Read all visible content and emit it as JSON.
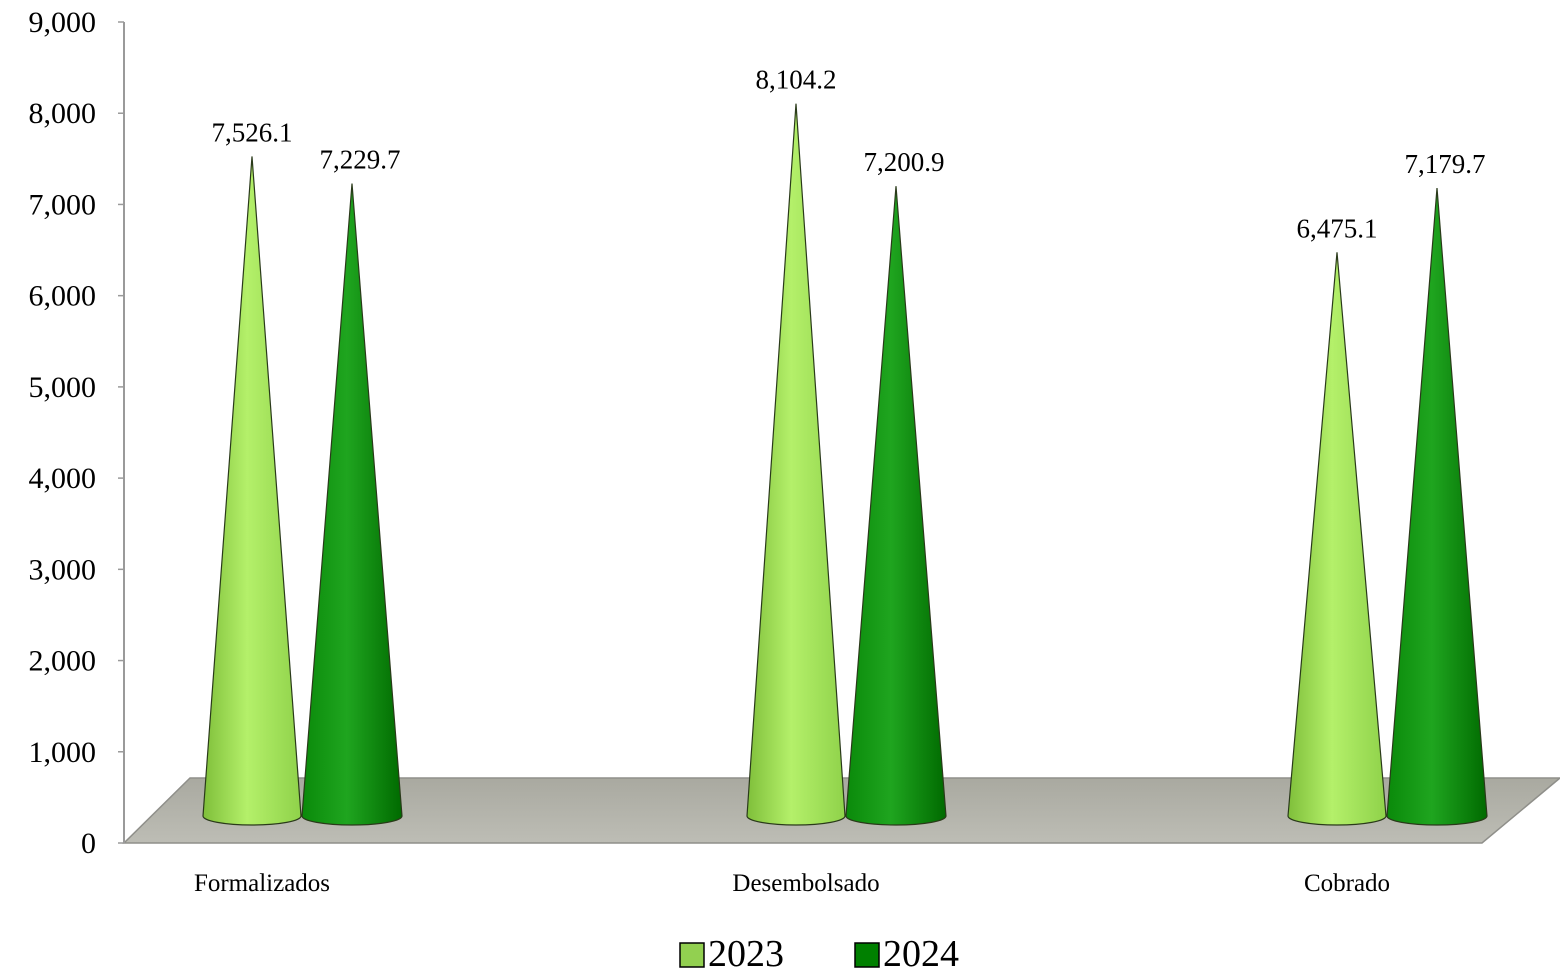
{
  "chart_data": {
    "type": "bar",
    "style": "3d-cone",
    "title": "",
    "xlabel": "",
    "ylabel": "",
    "categories": [
      "Formalizados",
      "Desembolsado",
      "Cobrado"
    ],
    "series": [
      {
        "name": "2023",
        "values": [
          7526.1,
          8104.2,
          6475.1
        ],
        "labels": [
          "7,526.1",
          "8,104.2",
          "6,475.1"
        ],
        "color": "#92D050"
      },
      {
        "name": "2024",
        "values": [
          7229.7,
          7200.9,
          7179.7
        ],
        "labels": [
          "7,229.7",
          "7,200.9",
          "7,179.7"
        ],
        "color": "#008000"
      }
    ],
    "ylim": [
      0,
      9000
    ],
    "yticks": [
      0,
      1000,
      2000,
      3000,
      4000,
      5000,
      6000,
      7000,
      8000,
      9000
    ],
    "ytick_labels": [
      "0",
      "1,000",
      "2,000",
      "3,000",
      "4,000",
      "5,000",
      "6,000",
      "7,000",
      "8,000",
      "9,000"
    ],
    "grid": false,
    "legend_position": "bottom",
    "floor_color": "#B0B0A8"
  }
}
